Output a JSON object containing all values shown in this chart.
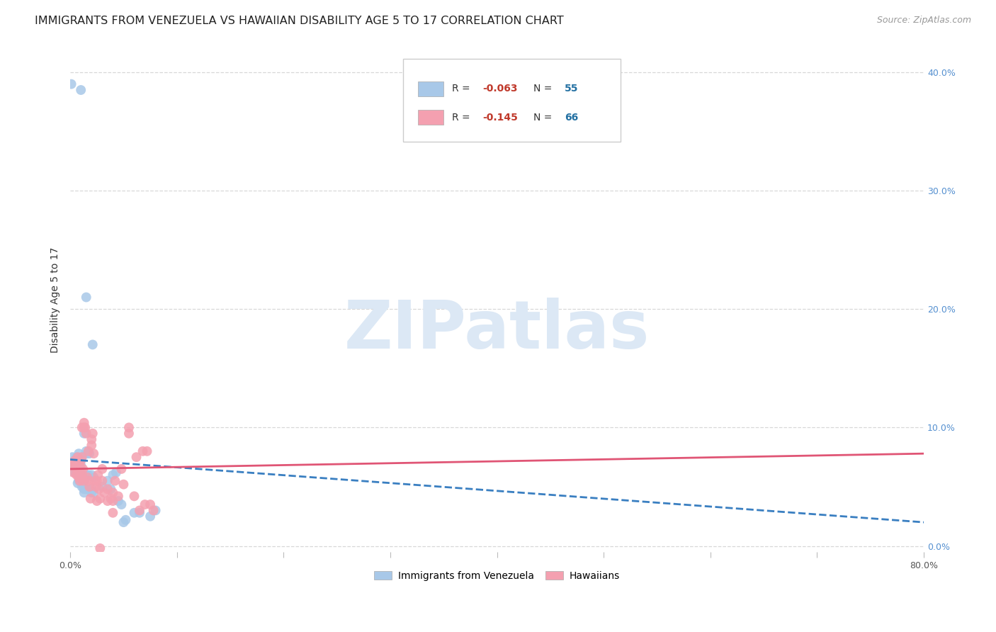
{
  "title": "IMMIGRANTS FROM VENEZUELA VS HAWAIIAN DISABILITY AGE 5 TO 17 CORRELATION CHART",
  "source": "Source: ZipAtlas.com",
  "ylabel": "Disability Age 5 to 17",
  "xlim": [
    0.0,
    0.8
  ],
  "ylim": [
    -0.005,
    0.42
  ],
  "x_ticks": [
    0.0,
    0.1,
    0.2,
    0.3,
    0.4,
    0.5,
    0.6,
    0.7,
    0.8
  ],
  "y_ticks_right": [
    0.0,
    0.1,
    0.2,
    0.3,
    0.4
  ],
  "blue_color": "#a8c8e8",
  "pink_color": "#f4a0b0",
  "blue_line_color": "#3a7fc1",
  "pink_line_color": "#e05575",
  "watermark_color": "#dce8f5",
  "grid_color": "#d8d8d8",
  "blue_scatter": [
    [
      0.001,
      0.39
    ],
    [
      0.01,
      0.385
    ],
    [
      0.015,
      0.21
    ],
    [
      0.021,
      0.17
    ],
    [
      0.013,
      0.095
    ],
    [
      0.015,
      0.08
    ],
    [
      0.016,
      0.078
    ],
    [
      0.018,
      0.078
    ],
    [
      0.002,
      0.075
    ],
    [
      0.006,
      0.075
    ],
    [
      0.011,
      0.075
    ],
    [
      0.004,
      0.072
    ],
    [
      0.007,
      0.072
    ],
    [
      0.003,
      0.068
    ],
    [
      0.007,
      0.068
    ],
    [
      0.01,
      0.068
    ],
    [
      0.005,
      0.065
    ],
    [
      0.008,
      0.065
    ],
    [
      0.003,
      0.063
    ],
    [
      0.009,
      0.063
    ],
    [
      0.006,
      0.062
    ],
    [
      0.01,
      0.06
    ],
    [
      0.012,
      0.06
    ],
    [
      0.015,
      0.06
    ],
    [
      0.017,
      0.06
    ],
    [
      0.02,
      0.06
    ],
    [
      0.04,
      0.06
    ],
    [
      0.007,
      0.053
    ],
    [
      0.011,
      0.053
    ],
    [
      0.008,
      0.055
    ],
    [
      0.01,
      0.055
    ],
    [
      0.013,
      0.055
    ],
    [
      0.02,
      0.048
    ],
    [
      0.011,
      0.05
    ],
    [
      0.03,
      0.05
    ],
    [
      0.013,
      0.048
    ],
    [
      0.015,
      0.048
    ],
    [
      0.038,
      0.048
    ],
    [
      0.022,
      0.045
    ],
    [
      0.02,
      0.045
    ],
    [
      0.013,
      0.045
    ],
    [
      0.043,
      0.062
    ],
    [
      0.022,
      0.058
    ],
    [
      0.045,
      0.038
    ],
    [
      0.035,
      0.055
    ],
    [
      0.048,
      0.035
    ],
    [
      0.05,
      0.02
    ],
    [
      0.052,
      0.022
    ],
    [
      0.06,
      0.028
    ],
    [
      0.065,
      0.028
    ],
    [
      0.075,
      0.025
    ],
    [
      0.08,
      0.03
    ],
    [
      0.005,
      0.07
    ],
    [
      0.008,
      0.078
    ],
    [
      0.009,
      0.058
    ]
  ],
  "pink_scatter": [
    [
      0.013,
      0.104
    ],
    [
      0.013,
      0.1
    ],
    [
      0.014,
      0.1
    ],
    [
      0.011,
      0.1
    ],
    [
      0.015,
      0.095
    ],
    [
      0.021,
      0.095
    ],
    [
      0.02,
      0.09
    ],
    [
      0.02,
      0.085
    ],
    [
      0.017,
      0.08
    ],
    [
      0.068,
      0.08
    ],
    [
      0.072,
      0.08
    ],
    [
      0.022,
      0.078
    ],
    [
      0.002,
      0.068
    ],
    [
      0.003,
      0.07
    ],
    [
      0.004,
      0.072
    ],
    [
      0.006,
      0.072
    ],
    [
      0.007,
      0.065
    ],
    [
      0.01,
      0.065
    ],
    [
      0.048,
      0.065
    ],
    [
      0.03,
      0.065
    ],
    [
      0.003,
      0.062
    ],
    [
      0.005,
      0.066
    ],
    [
      0.006,
      0.06
    ],
    [
      0.009,
      0.055
    ],
    [
      0.008,
      0.058
    ],
    [
      0.016,
      0.058
    ],
    [
      0.007,
      0.075
    ],
    [
      0.011,
      0.075
    ],
    [
      0.018,
      0.05
    ],
    [
      0.024,
      0.05
    ],
    [
      0.01,
      0.058
    ],
    [
      0.009,
      0.068
    ],
    [
      0.01,
      0.072
    ],
    [
      0.023,
      0.055
    ],
    [
      0.011,
      0.06
    ],
    [
      0.025,
      0.055
    ],
    [
      0.012,
      0.055
    ],
    [
      0.012,
      0.065
    ],
    [
      0.017,
      0.055
    ],
    [
      0.019,
      0.04
    ],
    [
      0.026,
      0.06
    ],
    [
      0.027,
      0.048
    ],
    [
      0.028,
      0.04
    ],
    [
      0.03,
      0.055
    ],
    [
      0.032,
      0.045
    ],
    [
      0.035,
      0.048
    ],
    [
      0.035,
      0.038
    ],
    [
      0.038,
      0.04
    ],
    [
      0.04,
      0.045
    ],
    [
      0.04,
      0.038
    ],
    [
      0.042,
      0.055
    ],
    [
      0.045,
      0.042
    ],
    [
      0.05,
      0.052
    ],
    [
      0.055,
      0.095
    ],
    [
      0.055,
      0.1
    ],
    [
      0.06,
      0.042
    ],
    [
      0.062,
      0.075
    ],
    [
      0.065,
      0.03
    ],
    [
      0.07,
      0.035
    ],
    [
      0.075,
      0.035
    ],
    [
      0.078,
      0.03
    ],
    [
      0.025,
      0.038
    ],
    [
      0.04,
      0.028
    ],
    [
      0.028,
      -0.002
    ]
  ],
  "blue_trend_x": [
    0.0,
    0.8
  ],
  "blue_trend_y": [
    0.073,
    0.02
  ],
  "pink_trend_x": [
    0.0,
    0.8
  ],
  "pink_trend_y": [
    0.065,
    0.078
  ],
  "background_color": "#ffffff",
  "title_fontsize": 11.5,
  "source_fontsize": 9,
  "tick_fontsize": 9,
  "axis_label_fontsize": 10
}
